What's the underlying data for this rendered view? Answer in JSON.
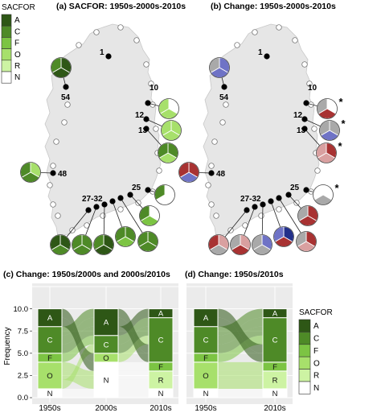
{
  "legend_title": "SACFOR",
  "categories": [
    "A",
    "C",
    "F",
    "O",
    "R",
    "N"
  ],
  "colors": {
    "A": "#2e5716",
    "C": "#4e8a27",
    "F": "#7cc443",
    "O": "#a7e06b",
    "R": "#cdf3a3",
    "N": "#ffffff"
  },
  "change_colors": {
    "increase": "#a83232",
    "increase_light": "#d9a0a0",
    "decrease": "#6f73c6",
    "decrease_dark": "#23308a",
    "no_change": "#a9a9a9",
    "blank": "#ffffff"
  },
  "panel_a": {
    "title": "(a) SACFOR: 1950s-2000s-2010s"
  },
  "panel_b": {
    "title": "(b) Change: 1950s-2000s-2010s",
    "star": "*"
  },
  "panel_c": {
    "title": "(c) Change: 1950s/2000s and 2000s/2010s"
  },
  "panel_d": {
    "title": "(d) Change: 1950s/2010s"
  },
  "site_labels": [
    "1",
    "10",
    "12",
    "13",
    "25",
    "27-32",
    "48",
    "54"
  ],
  "sites_a": [
    {
      "label": "54",
      "pie": [
        "A",
        "A",
        "C"
      ]
    },
    {
      "label": "10",
      "pie": [
        "N",
        "O",
        "O"
      ]
    },
    {
      "label": "12",
      "pie": [
        "O",
        "O",
        "O"
      ]
    },
    {
      "label": "13",
      "pie": [
        "C",
        "O",
        "C"
      ]
    },
    {
      "label": "48",
      "pie": [
        "O",
        "C",
        "C"
      ]
    },
    {
      "label": "25",
      "pie": [
        "N",
        "N",
        "C"
      ]
    },
    {
      "label": "27",
      "pie": [
        "N",
        "F",
        "C"
      ]
    },
    {
      "label": "28",
      "pie": [
        "C",
        "C",
        "C"
      ]
    },
    {
      "label": "29",
      "pie": [
        "C",
        "F",
        "C"
      ]
    },
    {
      "label": "30",
      "pie": [
        "A",
        "A",
        "C"
      ]
    },
    {
      "label": "31",
      "pie": [
        "C",
        "C",
        "C"
      ]
    },
    {
      "label": "32",
      "pie": [
        "A",
        "C",
        "A"
      ]
    }
  ],
  "sites_b": [
    {
      "label": "54",
      "pie": [
        "decrease",
        "decrease",
        "no_change"
      ]
    },
    {
      "label": "10",
      "pie": [
        "blank",
        "increase",
        "no_change"
      ],
      "star": true
    },
    {
      "label": "12",
      "pie": [
        "no_change",
        "decrease",
        "no_change"
      ],
      "star": true
    },
    {
      "label": "13",
      "pie": [
        "increase",
        "increase_light",
        "increase_light"
      ],
      "star": true
    },
    {
      "label": "48",
      "pie": [
        "increase",
        "decrease",
        "increase"
      ]
    },
    {
      "label": "25",
      "pie": [
        "blank",
        "no_change",
        "blank"
      ],
      "star": true
    },
    {
      "label": "27",
      "pie": [
        "increase",
        "increase",
        "no_change"
      ]
    },
    {
      "label": "28",
      "pie": [
        "increase",
        "increase_light",
        "no_change"
      ]
    },
    {
      "label": "29",
      "pie": [
        "decrease_dark",
        "increase",
        "decrease"
      ]
    },
    {
      "label": "30",
      "pie": [
        "decrease",
        "no_change",
        "no_change"
      ]
    },
    {
      "label": "31",
      "pie": [
        "increase_light",
        "increase",
        "no_change"
      ]
    },
    {
      "label": "32",
      "pie": [
        "increase_light",
        "no_change",
        "increase"
      ]
    }
  ],
  "chart_data": [
    {
      "type": "alluvial",
      "title": "(c) Change: 1950s/2000s and 2000s/2010s",
      "ylabel": "Frequency",
      "ylim": [
        0,
        12.5
      ],
      "yticks": [
        0.0,
        2.5,
        5.0,
        7.5,
        10.0
      ],
      "axes": [
        "1950s",
        "2000s",
        "2010s"
      ],
      "stacks": [
        {
          "A": 2,
          "C": 3,
          "F": 1,
          "O": 3,
          "R": 0,
          "N": 1
        },
        {
          "A": 3,
          "C": 2,
          "F": 0,
          "O": 1,
          "R": 0,
          "N": 4
        },
        {
          "A": 1,
          "C": 5,
          "F": 1,
          "O": 0,
          "R": 2,
          "N": 1
        }
      ]
    },
    {
      "type": "alluvial",
      "title": "(d) Change: 1950s/2010s",
      "ylim": [
        0,
        12.5
      ],
      "axes": [
        "1950s",
        "2010s"
      ],
      "stacks": [
        {
          "A": 2,
          "C": 3,
          "F": 1,
          "O": 3,
          "R": 0,
          "N": 1
        },
        {
          "A": 1,
          "C": 5,
          "F": 1,
          "O": 0,
          "R": 2,
          "N": 1
        }
      ]
    }
  ]
}
